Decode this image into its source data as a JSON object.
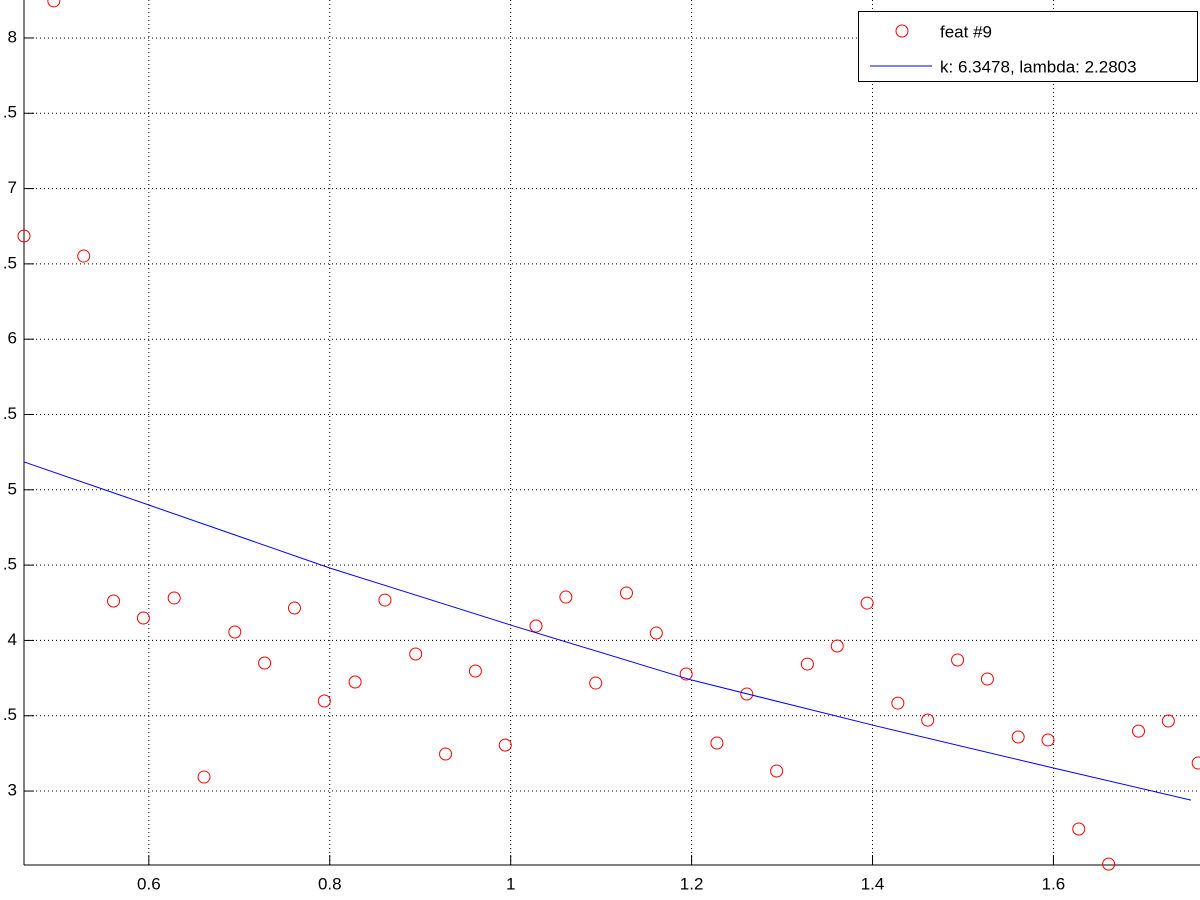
{
  "chart_data": {
    "type": "scatter",
    "xlim": [
      0.462,
      1.762
    ],
    "ylim": [
      2.509,
      8.252
    ],
    "xticks": [
      0.6,
      0.8,
      1,
      1.2,
      1.4,
      1.6
    ],
    "yticks": [
      3,
      {
        "value": 3.5,
        "label": ".5"
      },
      4,
      {
        "value": 4.5,
        "label": ".5"
      },
      5,
      {
        "value": 5.5,
        "label": ".5"
      },
      6,
      {
        "value": 6.5,
        "label": ".5"
      },
      7,
      {
        "value": 7.5,
        "label": ".5"
      },
      8
    ],
    "grid": true,
    "legend": "top-right",
    "series": [
      {
        "name": "feat #9",
        "type": "scatter",
        "color": "#ff0000",
        "x": [
          0.462,
          0.495,
          0.528,
          0.561,
          0.594,
          0.628,
          0.661,
          0.695,
          0.728,
          0.761,
          0.794,
          0.828,
          0.861,
          0.895,
          0.928,
          0.961,
          0.994,
          1.028,
          1.061,
          1.094,
          1.128,
          1.161,
          1.194,
          1.228,
          1.261,
          1.294,
          1.328,
          1.361,
          1.394,
          1.428,
          1.461,
          1.494,
          1.527,
          1.561,
          1.594,
          1.628,
          1.661,
          1.694,
          1.727,
          1.76
        ],
        "values": [
          6.685,
          8.246,
          6.552,
          4.262,
          4.149,
          4.282,
          3.093,
          4.056,
          3.85,
          4.215,
          3.598,
          3.724,
          4.268,
          3.91,
          3.246,
          3.797,
          3.305,
          4.096,
          4.288,
          3.717,
          4.315,
          4.049,
          3.777,
          3.319,
          3.644,
          3.133,
          3.843,
          3.963,
          4.248,
          3.584,
          3.471,
          3.87,
          3.744,
          3.359,
          3.339,
          2.748,
          2.515,
          3.398,
          3.465,
          3.186
        ]
      },
      {
        "name": "k: 6.3478, lambda: 2.2803",
        "type": "line",
        "color": "#0000ff",
        "x": [
          0.462,
          0.6,
          0.8,
          1,
          1.2,
          1.4,
          1.6,
          1.752
        ],
        "values": [
          5.185,
          4.899,
          4.481,
          4.102,
          3.737,
          3.438,
          3.153,
          2.94
        ]
      }
    ]
  }
}
